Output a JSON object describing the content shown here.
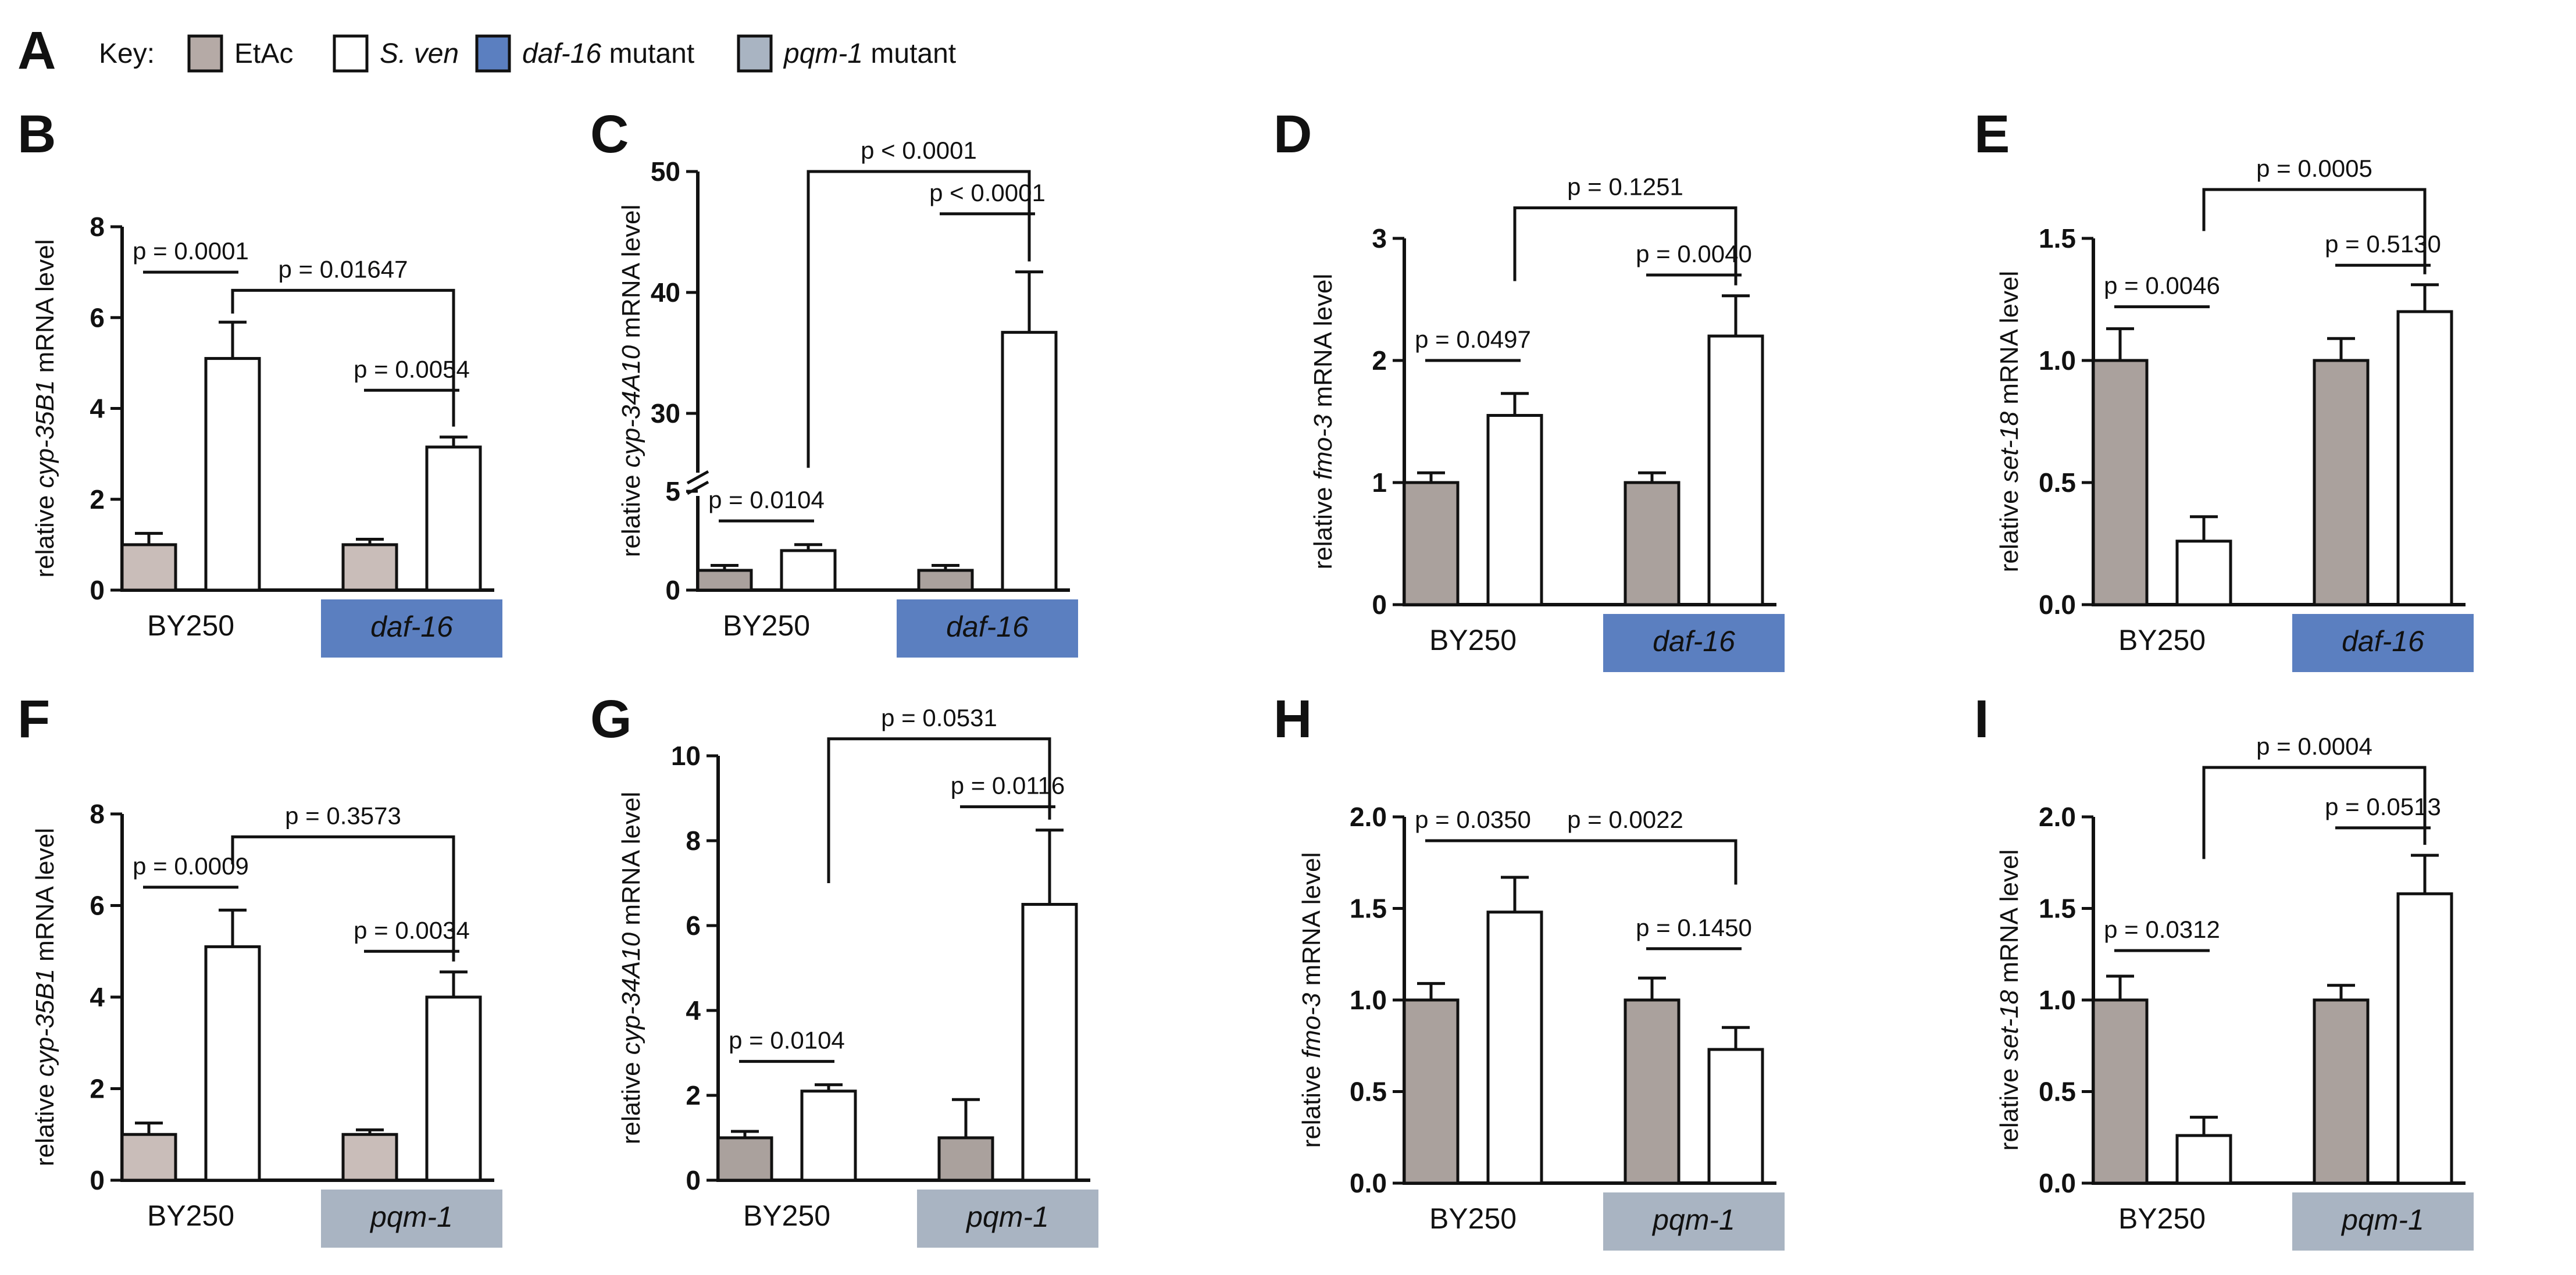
{
  "key": {
    "label": "Key:",
    "items": [
      {
        "name": "EtAc",
        "color": "#b5aaa6",
        "italic": false,
        "suffix": ""
      },
      {
        "name": "S. ven",
        "color": "#ffffff",
        "italic": true,
        "suffix": ""
      },
      {
        "name": "daf-16",
        "color": "#5b7fc0",
        "italic": true,
        "suffix": " mutant"
      },
      {
        "name": "pqm-1",
        "color": "#a9b4c2",
        "italic": true,
        "suffix": " mutant"
      }
    ]
  },
  "figure_panel_A": "A",
  "colors": {
    "etac_light": "#c9bdb9",
    "etac_dark": "#aaa19d",
    "sven": "#ffffff",
    "daf16_box": "#5b7fc0",
    "pqm1_box": "#a9b4c2"
  },
  "chart_data": [
    {
      "panel": "B",
      "type": "bar",
      "ylabel_pre": "relative ",
      "ylabel_it": "cyp-35B1",
      "ylabel_post": " mRNA level",
      "ylim": [
        0,
        8
      ],
      "yticks": [
        0,
        2,
        4,
        6,
        8
      ],
      "tick_labels": [
        "0",
        "2",
        "4",
        "6",
        "8"
      ],
      "categories": [
        "BY250",
        "daf-16"
      ],
      "mutant_color": "daf16_box",
      "etac_shade": "etac_light",
      "series": [
        {
          "name": "EtAc",
          "values": [
            1.0,
            1.0
          ],
          "errors": [
            0.25,
            0.12
          ]
        },
        {
          "name": "S. ven",
          "values": [
            5.1,
            3.15
          ],
          "errors": [
            0.8,
            0.22
          ]
        }
      ],
      "annotations": [
        {
          "type": "bar",
          "from": [
            0,
            0
          ],
          "to": [
            0,
            1
          ],
          "y": 7.0,
          "text": "p = 0.0001"
        },
        {
          "type": "bar",
          "from": [
            1,
            0
          ],
          "to": [
            1,
            1
          ],
          "y": 4.4,
          "text": "p = 0.0054"
        },
        {
          "type": "bracket",
          "from": [
            0,
            1
          ],
          "to": [
            1,
            1
          ],
          "y": 6.6,
          "text": "p = 0.01647",
          "text_pos": "above"
        }
      ]
    },
    {
      "panel": "C",
      "type": "bar",
      "ylabel_pre": "relative ",
      "ylabel_it": "cyp-34A10",
      "ylabel_post": " mRNA level",
      "axis_break": true,
      "lower_range": [
        0,
        5
      ],
      "upper_range": [
        5,
        50
      ],
      "yticks": [
        0,
        5,
        30,
        40,
        50
      ],
      "tick_labels": [
        "0",
        "5",
        "30",
        "40",
        "50"
      ],
      "categories": [
        "BY250",
        "daf-16"
      ],
      "mutant_color": "daf16_box",
      "etac_shade": "etac_dark",
      "series": [
        {
          "name": "EtAc",
          "values": [
            1.0,
            1.0
          ],
          "errors": [
            0.25,
            0.25
          ]
        },
        {
          "name": "S. ven",
          "values": [
            2.0,
            36.7
          ],
          "errors": [
            0.3,
            5.0
          ]
        }
      ],
      "annotations": [
        {
          "type": "bar",
          "from": [
            0,
            0
          ],
          "to": [
            0,
            1
          ],
          "y": 3.5,
          "text": "p = 0.0104"
        },
        {
          "type": "bar",
          "from": [
            1,
            0
          ],
          "to": [
            1,
            1
          ],
          "y": 46.5,
          "text": "p < 0.0001"
        },
        {
          "type": "bracket",
          "from": [
            0,
            1
          ],
          "to": [
            1,
            1
          ],
          "y": 50.0,
          "text": "p < 0.0001",
          "text_pos": "above",
          "drop_to": 25.5
        }
      ]
    },
    {
      "panel": "D",
      "type": "bar",
      "ylabel_pre": "relative ",
      "ylabel_it": "fmo-3",
      "ylabel_post": " mRNA level",
      "ylim": [
        0,
        3
      ],
      "yticks": [
        0,
        1,
        2,
        3
      ],
      "tick_labels": [
        "0",
        "1",
        "2",
        "3"
      ],
      "categories": [
        "BY250",
        "daf-16"
      ],
      "mutant_color": "daf16_box",
      "etac_shade": "etac_dark",
      "series": [
        {
          "name": "EtAc",
          "values": [
            1.0,
            1.0
          ],
          "errors": [
            0.08,
            0.08
          ]
        },
        {
          "name": "S. ven",
          "values": [
            1.55,
            2.2
          ],
          "errors": [
            0.18,
            0.33
          ]
        }
      ],
      "annotations": [
        {
          "type": "bar",
          "from": [
            0,
            0
          ],
          "to": [
            0,
            1
          ],
          "y": 2.0,
          "text": "p = 0.0497"
        },
        {
          "type": "bar",
          "from": [
            1,
            0
          ],
          "to": [
            1,
            1
          ],
          "y": 2.7,
          "text": "p = 0.0040"
        },
        {
          "type": "bracket",
          "from": [
            0,
            1
          ],
          "to": [
            1,
            1
          ],
          "y": 3.25,
          "text": "p = 0.1251",
          "text_pos": "above",
          "drop_to": 2.65
        }
      ]
    },
    {
      "panel": "E",
      "type": "bar",
      "ylabel_pre": "relative ",
      "ylabel_it": "set-18",
      "ylabel_post": " mRNA level",
      "ylim": [
        0,
        1.5
      ],
      "yticks": [
        0,
        0.5,
        1.0,
        1.5
      ],
      "tick_labels": [
        "0.0",
        "0.5",
        "1.0",
        "1.5"
      ],
      "categories": [
        "BY250",
        "daf-16"
      ],
      "mutant_color": "daf16_box",
      "etac_shade": "etac_dark",
      "series": [
        {
          "name": "EtAc",
          "values": [
            1.0,
            1.0
          ],
          "errors": [
            0.13,
            0.09
          ]
        },
        {
          "name": "S. ven",
          "values": [
            0.26,
            1.2
          ],
          "errors": [
            0.1,
            0.11
          ]
        }
      ],
      "annotations": [
        {
          "type": "bar",
          "from": [
            0,
            0
          ],
          "to": [
            0,
            1
          ],
          "y": 1.22,
          "text": "p = 0.0046"
        },
        {
          "type": "bar",
          "from": [
            1,
            0
          ],
          "to": [
            1,
            1
          ],
          "y": 1.39,
          "text": "p = 0.5130"
        },
        {
          "type": "bracket",
          "from": [
            0,
            1
          ],
          "to": [
            1,
            1
          ],
          "y": 1.7,
          "text": "p = 0.0005",
          "text_pos": "above",
          "drop_to": 1.53
        }
      ]
    },
    {
      "panel": "F",
      "type": "bar",
      "ylabel_pre": "relative ",
      "ylabel_it": "cyp-35B1",
      "ylabel_post": " mRNA level",
      "ylim": [
        0,
        8
      ],
      "yticks": [
        0,
        2,
        4,
        6,
        8
      ],
      "tick_labels": [
        "0",
        "2",
        "4",
        "6",
        "8"
      ],
      "categories": [
        "BY250",
        "pqm-1"
      ],
      "mutant_color": "pqm1_box",
      "etac_shade": "etac_light",
      "series": [
        {
          "name": "EtAc",
          "values": [
            1.0,
            1.0
          ],
          "errors": [
            0.25,
            0.1
          ]
        },
        {
          "name": "S. ven",
          "values": [
            5.1,
            4.0
          ],
          "errors": [
            0.8,
            0.55
          ]
        }
      ],
      "annotations": [
        {
          "type": "bar",
          "from": [
            0,
            0
          ],
          "to": [
            0,
            1
          ],
          "y": 6.4,
          "text": "p = 0.0009"
        },
        {
          "type": "bar",
          "from": [
            1,
            0
          ],
          "to": [
            1,
            1
          ],
          "y": 5.0,
          "text": "p = 0.0034"
        },
        {
          "type": "bracket",
          "from": [
            0,
            1
          ],
          "to": [
            1,
            1
          ],
          "y": 7.5,
          "text": "p = 0.3573",
          "text_pos": "above",
          "drop_to": 6.9
        }
      ]
    },
    {
      "panel": "G",
      "type": "bar",
      "ylabel_pre": "relative ",
      "ylabel_it": "cyp-34A10",
      "ylabel_post": " mRNA level",
      "ylim": [
        0,
        10
      ],
      "yticks": [
        0,
        2,
        4,
        6,
        8,
        10
      ],
      "tick_labels": [
        "0",
        "2",
        "4",
        "6",
        "8",
        "10"
      ],
      "categories": [
        "BY250",
        "pqm-1"
      ],
      "mutant_color": "pqm1_box",
      "etac_shade": "etac_dark",
      "series": [
        {
          "name": "EtAc",
          "values": [
            1.0,
            1.0
          ],
          "errors": [
            0.15,
            0.9
          ]
        },
        {
          "name": "S. ven",
          "values": [
            2.1,
            6.5
          ],
          "errors": [
            0.15,
            1.75
          ]
        }
      ],
      "annotations": [
        {
          "type": "bar",
          "from": [
            0,
            0
          ],
          "to": [
            0,
            1
          ],
          "y": 2.8,
          "text": "p = 0.0104"
        },
        {
          "type": "bar",
          "from": [
            1,
            0
          ],
          "to": [
            1,
            1
          ],
          "y": 8.8,
          "text": "p = 0.0116"
        },
        {
          "type": "bracket",
          "from": [
            0,
            1
          ],
          "to": [
            1,
            1
          ],
          "y": 10.4,
          "text": "p = 0.0531",
          "text_pos": "above",
          "drop_to": 7.0
        }
      ]
    },
    {
      "panel": "H",
      "type": "bar",
      "ylabel_pre": "relative ",
      "ylabel_it": "fmo-3",
      "ylabel_post": " mRNA level",
      "ylim": [
        0,
        2.0
      ],
      "yticks": [
        0,
        0.5,
        1.0,
        1.5,
        2.0
      ],
      "tick_labels": [
        "0.0",
        "0.5",
        "1.0",
        "1.5",
        "2.0"
      ],
      "categories": [
        "BY250",
        "pqm-1"
      ],
      "mutant_color": "pqm1_box",
      "etac_shade": "etac_dark",
      "series": [
        {
          "name": "EtAc",
          "values": [
            1.0,
            1.0
          ],
          "errors": [
            0.09,
            0.12
          ]
        },
        {
          "name": "S. ven",
          "values": [
            1.48,
            0.73
          ],
          "errors": [
            0.19,
            0.12
          ]
        }
      ],
      "annotations": [
        {
          "type": "bar",
          "from": [
            0,
            0
          ],
          "to": [
            0,
            1
          ],
          "y": 1.87,
          "text": "p = 0.0350"
        },
        {
          "type": "bar",
          "from": [
            1,
            0
          ],
          "to": [
            1,
            1
          ],
          "y": 1.28,
          "text": "p = 0.1450"
        },
        {
          "type": "bracket",
          "from": [
            0,
            1
          ],
          "to": [
            1,
            1
          ],
          "y": 1.87,
          "text": "p = 0.0022",
          "text_pos": "above",
          "drop_to": 1.63,
          "right_only": true
        }
      ]
    },
    {
      "panel": "I",
      "type": "bar",
      "ylabel_pre": "relative ",
      "ylabel_it": "set-18",
      "ylabel_post": " mRNA level",
      "ylim": [
        0,
        2.0
      ],
      "yticks": [
        0,
        0.5,
        1.0,
        1.5,
        2.0
      ],
      "tick_labels": [
        "0.0",
        "0.5",
        "1.0",
        "1.5",
        "2.0"
      ],
      "categories": [
        "BY250",
        "pqm-1"
      ],
      "mutant_color": "pqm1_box",
      "etac_shade": "etac_dark",
      "series": [
        {
          "name": "EtAc",
          "values": [
            1.0,
            1.0
          ],
          "errors": [
            0.13,
            0.08
          ]
        },
        {
          "name": "S. ven",
          "values": [
            0.26,
            1.58
          ],
          "errors": [
            0.1,
            0.21
          ]
        }
      ],
      "annotations": [
        {
          "type": "bar",
          "from": [
            0,
            0
          ],
          "to": [
            0,
            1
          ],
          "y": 1.27,
          "text": "p = 0.0312"
        },
        {
          "type": "bar",
          "from": [
            1,
            0
          ],
          "to": [
            1,
            1
          ],
          "y": 1.94,
          "text": "p = 0.0513"
        },
        {
          "type": "bracket",
          "from": [
            0,
            1
          ],
          "to": [
            1,
            1
          ],
          "y": 2.27,
          "text": "p = 0.0004",
          "text_pos": "above",
          "drop_to": 1.77
        }
      ]
    }
  ]
}
